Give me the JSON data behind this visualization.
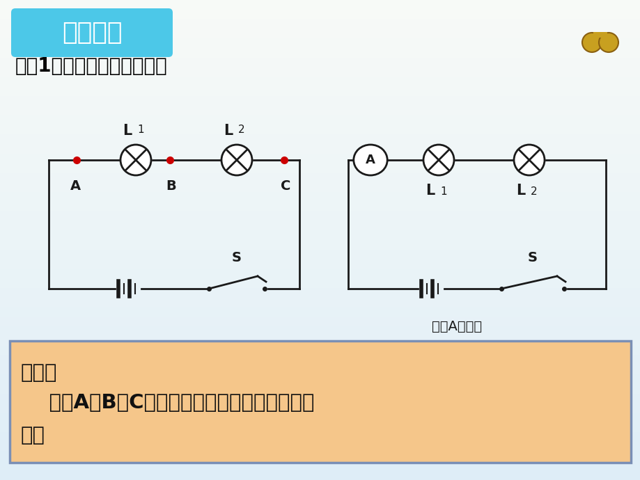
{
  "bg_color": "#ddeef8",
  "bg_color2": "#c8dff0",
  "title_box_color1": "#4cc8e8",
  "title_box_color2": "#1a9abf",
  "title_text": "实验探究",
  "title_text_color": "#ffffff",
  "subtitle_text": "探究1：串联电路的电流规律",
  "subtitle_color": "#000000",
  "bottom_box_color": "#f5c68a",
  "bottom_box_border": "#7a8fb5",
  "bottom_text_line1": "猜想：",
  "bottom_text_line2": "    流过A、B、C各点的电流大小可能存在什么关",
  "bottom_text_line3": "系？",
  "right_label_measure": "测量A点电流",
  "dot_color": "#cc0000",
  "wire_color": "#1a1a1a",
  "lw": 2.0
}
